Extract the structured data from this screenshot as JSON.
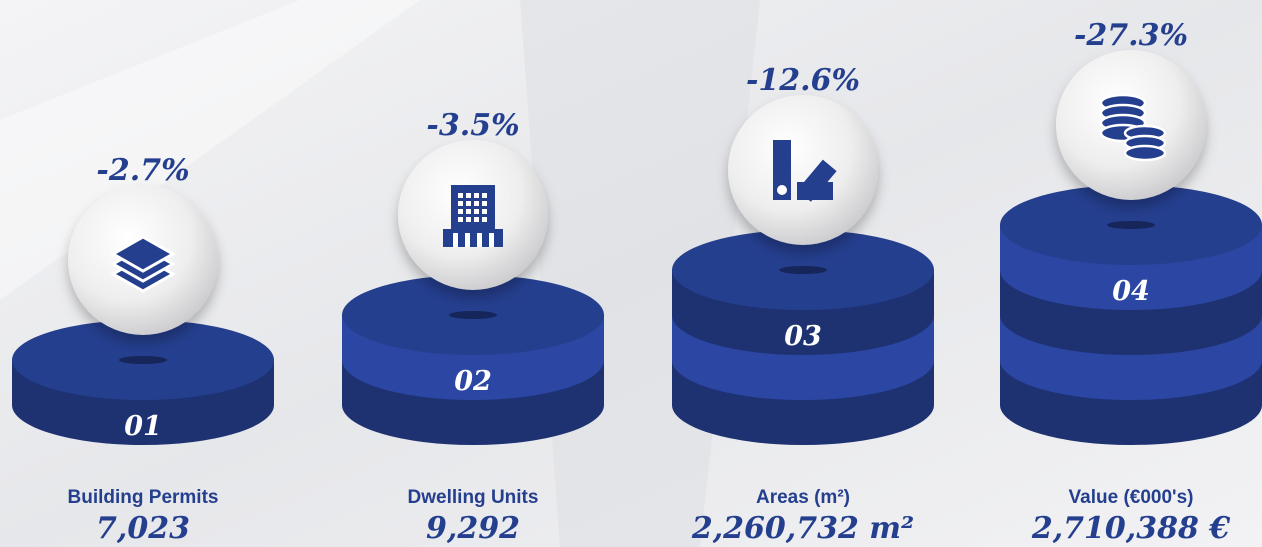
{
  "items": [
    {
      "number": "01",
      "label": "Building Permits",
      "value": "7,023",
      "change": "-2.7%"
    },
    {
      "number": "02",
      "label": "Dwelling Units",
      "value": "9,292",
      "change": "-3.5%"
    },
    {
      "number": "03",
      "label": "Areas (m²)",
      "value": "2,260,732 m²",
      "change": "-12.6%"
    },
    {
      "number": "04",
      "label": "Value (€000's)",
      "value": "2,710,388 €",
      "change": "-27.3%"
    }
  ]
}
